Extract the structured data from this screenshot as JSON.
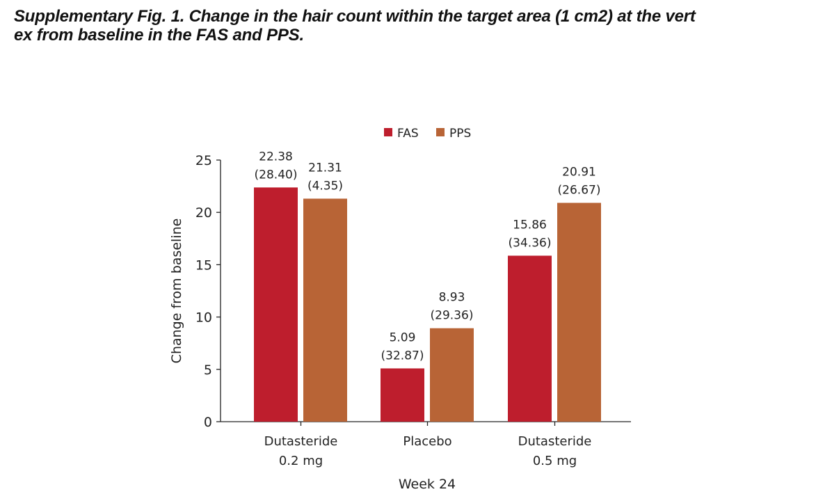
{
  "title_lines": [
    "Supplementary Fig. 1. Change in the hair count within the target area (1 cm2) at the vert",
    "ex from baseline in the FAS and PPS."
  ],
  "chart_data": {
    "type": "bar",
    "categories": [
      [
        "Dutasteride",
        "0.2 mg"
      ],
      [
        "Placebo"
      ],
      [
        "Dutasteride",
        "0.5 mg"
      ]
    ],
    "series": [
      {
        "name": "FAS",
        "color": "#be1e2d",
        "values": [
          22.38,
          5.09,
          15.86
        ],
        "labels": [
          "(28.40)",
          "(32.87)",
          "(34.36)"
        ]
      },
      {
        "name": "PPS",
        "color": "#b86436",
        "values": [
          21.31,
          8.93,
          20.91
        ],
        "labels": [
          "(4.35)",
          "(29.36)",
          "(26.67)"
        ]
      }
    ],
    "value_labels": [
      [
        "22.38",
        "5.09",
        "15.86"
      ],
      [
        "21.31",
        "8.93",
        "20.91"
      ]
    ],
    "xlabel": "Week 24",
    "ylabel": "Change from baseline",
    "ylim": [
      0,
      25
    ],
    "yticks": [
      "0",
      "5",
      "10",
      "15",
      "20",
      "25"
    ],
    "legend": "top-center",
    "grid": false
  }
}
